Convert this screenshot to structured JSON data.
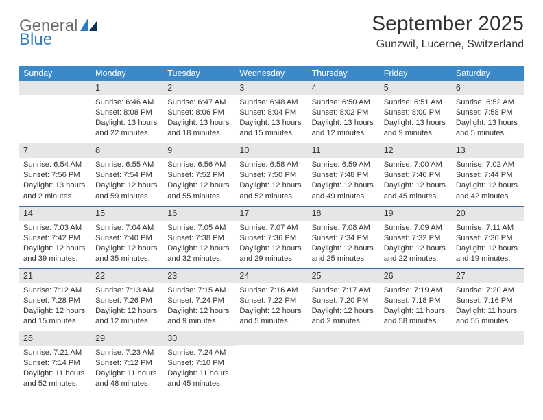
{
  "logo": {
    "general": "General",
    "blue": "Blue"
  },
  "title": "September 2025",
  "location": "Gunzwil, Lucerne, Switzerland",
  "colors": {
    "header_bg": "#3b89c9",
    "header_text": "#ffffff",
    "daynum_bg": "#e6e6e6",
    "row_border": "#3b6fa0",
    "body_text": "#333333",
    "logo_gray": "#6a6a6a",
    "logo_blue": "#2f7bbf",
    "background": "#ffffff"
  },
  "typography": {
    "title_fontsize": 30,
    "location_fontsize": 16,
    "dayhead_fontsize": 12.5,
    "daynum_fontsize": 12.5,
    "body_fontsize": 11.2
  },
  "day_headers": [
    "Sunday",
    "Monday",
    "Tuesday",
    "Wednesday",
    "Thursday",
    "Friday",
    "Saturday"
  ],
  "weeks": [
    [
      {
        "num": "",
        "sunrise": "",
        "sunset": "",
        "daylight1": "",
        "daylight2": ""
      },
      {
        "num": "1",
        "sunrise": "Sunrise: 6:46 AM",
        "sunset": "Sunset: 8:08 PM",
        "daylight1": "Daylight: 13 hours",
        "daylight2": "and 22 minutes."
      },
      {
        "num": "2",
        "sunrise": "Sunrise: 6:47 AM",
        "sunset": "Sunset: 8:06 PM",
        "daylight1": "Daylight: 13 hours",
        "daylight2": "and 18 minutes."
      },
      {
        "num": "3",
        "sunrise": "Sunrise: 6:48 AM",
        "sunset": "Sunset: 8:04 PM",
        "daylight1": "Daylight: 13 hours",
        "daylight2": "and 15 minutes."
      },
      {
        "num": "4",
        "sunrise": "Sunrise: 6:50 AM",
        "sunset": "Sunset: 8:02 PM",
        "daylight1": "Daylight: 13 hours",
        "daylight2": "and 12 minutes."
      },
      {
        "num": "5",
        "sunrise": "Sunrise: 6:51 AM",
        "sunset": "Sunset: 8:00 PM",
        "daylight1": "Daylight: 13 hours",
        "daylight2": "and 9 minutes."
      },
      {
        "num": "6",
        "sunrise": "Sunrise: 6:52 AM",
        "sunset": "Sunset: 7:58 PM",
        "daylight1": "Daylight: 13 hours",
        "daylight2": "and 5 minutes."
      }
    ],
    [
      {
        "num": "7",
        "sunrise": "Sunrise: 6:54 AM",
        "sunset": "Sunset: 7:56 PM",
        "daylight1": "Daylight: 13 hours",
        "daylight2": "and 2 minutes."
      },
      {
        "num": "8",
        "sunrise": "Sunrise: 6:55 AM",
        "sunset": "Sunset: 7:54 PM",
        "daylight1": "Daylight: 12 hours",
        "daylight2": "and 59 minutes."
      },
      {
        "num": "9",
        "sunrise": "Sunrise: 6:56 AM",
        "sunset": "Sunset: 7:52 PM",
        "daylight1": "Daylight: 12 hours",
        "daylight2": "and 55 minutes."
      },
      {
        "num": "10",
        "sunrise": "Sunrise: 6:58 AM",
        "sunset": "Sunset: 7:50 PM",
        "daylight1": "Daylight: 12 hours",
        "daylight2": "and 52 minutes."
      },
      {
        "num": "11",
        "sunrise": "Sunrise: 6:59 AM",
        "sunset": "Sunset: 7:48 PM",
        "daylight1": "Daylight: 12 hours",
        "daylight2": "and 49 minutes."
      },
      {
        "num": "12",
        "sunrise": "Sunrise: 7:00 AM",
        "sunset": "Sunset: 7:46 PM",
        "daylight1": "Daylight: 12 hours",
        "daylight2": "and 45 minutes."
      },
      {
        "num": "13",
        "sunrise": "Sunrise: 7:02 AM",
        "sunset": "Sunset: 7:44 PM",
        "daylight1": "Daylight: 12 hours",
        "daylight2": "and 42 minutes."
      }
    ],
    [
      {
        "num": "14",
        "sunrise": "Sunrise: 7:03 AM",
        "sunset": "Sunset: 7:42 PM",
        "daylight1": "Daylight: 12 hours",
        "daylight2": "and 39 minutes."
      },
      {
        "num": "15",
        "sunrise": "Sunrise: 7:04 AM",
        "sunset": "Sunset: 7:40 PM",
        "daylight1": "Daylight: 12 hours",
        "daylight2": "and 35 minutes."
      },
      {
        "num": "16",
        "sunrise": "Sunrise: 7:05 AM",
        "sunset": "Sunset: 7:38 PM",
        "daylight1": "Daylight: 12 hours",
        "daylight2": "and 32 minutes."
      },
      {
        "num": "17",
        "sunrise": "Sunrise: 7:07 AM",
        "sunset": "Sunset: 7:36 PM",
        "daylight1": "Daylight: 12 hours",
        "daylight2": "and 29 minutes."
      },
      {
        "num": "18",
        "sunrise": "Sunrise: 7:08 AM",
        "sunset": "Sunset: 7:34 PM",
        "daylight1": "Daylight: 12 hours",
        "daylight2": "and 25 minutes."
      },
      {
        "num": "19",
        "sunrise": "Sunrise: 7:09 AM",
        "sunset": "Sunset: 7:32 PM",
        "daylight1": "Daylight: 12 hours",
        "daylight2": "and 22 minutes."
      },
      {
        "num": "20",
        "sunrise": "Sunrise: 7:11 AM",
        "sunset": "Sunset: 7:30 PM",
        "daylight1": "Daylight: 12 hours",
        "daylight2": "and 19 minutes."
      }
    ],
    [
      {
        "num": "21",
        "sunrise": "Sunrise: 7:12 AM",
        "sunset": "Sunset: 7:28 PM",
        "daylight1": "Daylight: 12 hours",
        "daylight2": "and 15 minutes."
      },
      {
        "num": "22",
        "sunrise": "Sunrise: 7:13 AM",
        "sunset": "Sunset: 7:26 PM",
        "daylight1": "Daylight: 12 hours",
        "daylight2": "and 12 minutes."
      },
      {
        "num": "23",
        "sunrise": "Sunrise: 7:15 AM",
        "sunset": "Sunset: 7:24 PM",
        "daylight1": "Daylight: 12 hours",
        "daylight2": "and 9 minutes."
      },
      {
        "num": "24",
        "sunrise": "Sunrise: 7:16 AM",
        "sunset": "Sunset: 7:22 PM",
        "daylight1": "Daylight: 12 hours",
        "daylight2": "and 5 minutes."
      },
      {
        "num": "25",
        "sunrise": "Sunrise: 7:17 AM",
        "sunset": "Sunset: 7:20 PM",
        "daylight1": "Daylight: 12 hours",
        "daylight2": "and 2 minutes."
      },
      {
        "num": "26",
        "sunrise": "Sunrise: 7:19 AM",
        "sunset": "Sunset: 7:18 PM",
        "daylight1": "Daylight: 11 hours",
        "daylight2": "and 58 minutes."
      },
      {
        "num": "27",
        "sunrise": "Sunrise: 7:20 AM",
        "sunset": "Sunset: 7:16 PM",
        "daylight1": "Daylight: 11 hours",
        "daylight2": "and 55 minutes."
      }
    ],
    [
      {
        "num": "28",
        "sunrise": "Sunrise: 7:21 AM",
        "sunset": "Sunset: 7:14 PM",
        "daylight1": "Daylight: 11 hours",
        "daylight2": "and 52 minutes."
      },
      {
        "num": "29",
        "sunrise": "Sunrise: 7:23 AM",
        "sunset": "Sunset: 7:12 PM",
        "daylight1": "Daylight: 11 hours",
        "daylight2": "and 48 minutes."
      },
      {
        "num": "30",
        "sunrise": "Sunrise: 7:24 AM",
        "sunset": "Sunset: 7:10 PM",
        "daylight1": "Daylight: 11 hours",
        "daylight2": "and 45 minutes."
      },
      {
        "num": "",
        "sunrise": "",
        "sunset": "",
        "daylight1": "",
        "daylight2": ""
      },
      {
        "num": "",
        "sunrise": "",
        "sunset": "",
        "daylight1": "",
        "daylight2": ""
      },
      {
        "num": "",
        "sunrise": "",
        "sunset": "",
        "daylight1": "",
        "daylight2": ""
      },
      {
        "num": "",
        "sunrise": "",
        "sunset": "",
        "daylight1": "",
        "daylight2": ""
      }
    ]
  ]
}
